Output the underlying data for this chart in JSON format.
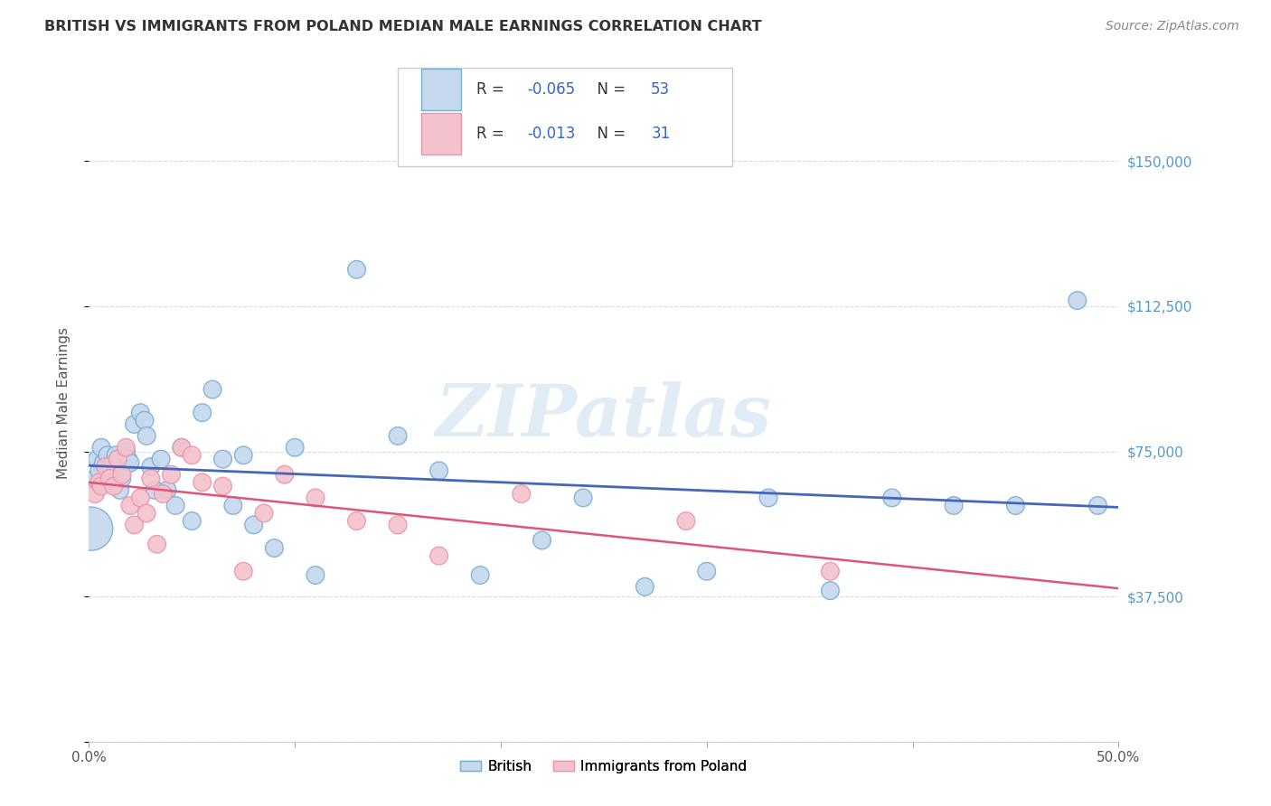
{
  "title": "BRITISH VS IMMIGRANTS FROM POLAND MEDIAN MALE EARNINGS CORRELATION CHART",
  "source": "Source: ZipAtlas.com",
  "ylabel": "Median Male Earnings",
  "xlim": [
    0.0,
    0.5
  ],
  "ylim": [
    0,
    175000
  ],
  "yticks": [
    0,
    37500,
    75000,
    112500,
    150000
  ],
  "ytick_labels": [
    "",
    "$37,500",
    "$75,000",
    "$112,500",
    "$150,000"
  ],
  "xticks": [
    0.0,
    0.1,
    0.2,
    0.3,
    0.4,
    0.5
  ],
  "xtick_labels": [
    "0.0%",
    "",
    "",
    "",
    "",
    "50.0%"
  ],
  "watermark": "ZIPatlas",
  "legend_british_R": "-0.065",
  "legend_british_N": "53",
  "legend_poland_R": "-0.013",
  "legend_poland_N": "31",
  "background_color": "#ffffff",
  "title_color": "#333333",
  "blue_face": "#c5d8ee",
  "blue_edge": "#7aafd4",
  "blue_line": "#4466bb",
  "pink_face": "#f4c2cc",
  "pink_edge": "#e898aa",
  "pink_line": "#dd5577",
  "grid_color": "#cccccc",
  "right_label_color": "#5599cc",
  "legend_R_color": "#3366cc",
  "legend_N_color": "#3366cc",
  "legend_text_color": "#333333",
  "british_x": [
    0.003,
    0.004,
    0.005,
    0.006,
    0.007,
    0.009,
    0.01,
    0.011,
    0.012,
    0.013,
    0.014,
    0.015,
    0.016,
    0.017,
    0.018,
    0.019,
    0.02,
    0.022,
    0.025,
    0.027,
    0.028,
    0.03,
    0.032,
    0.035,
    0.038,
    0.042,
    0.045,
    0.05,
    0.055,
    0.06,
    0.065,
    0.07,
    0.075,
    0.08,
    0.09,
    0.1,
    0.11,
    0.13,
    0.15,
    0.17,
    0.19,
    0.22,
    0.24,
    0.27,
    0.3,
    0.33,
    0.36,
    0.39,
    0.42,
    0.45,
    0.48,
    0.49,
    0.001
  ],
  "british_y": [
    68000,
    73000,
    70000,
    76000,
    72000,
    74000,
    71000,
    70000,
    72000,
    74000,
    73000,
    65000,
    68000,
    71000,
    75000,
    73000,
    72000,
    82000,
    85000,
    83000,
    79000,
    71000,
    65000,
    73000,
    65000,
    61000,
    76000,
    57000,
    85000,
    91000,
    73000,
    61000,
    74000,
    56000,
    50000,
    76000,
    43000,
    122000,
    79000,
    70000,
    43000,
    52000,
    63000,
    40000,
    44000,
    63000,
    39000,
    63000,
    61000,
    61000,
    114000,
    61000,
    55000
  ],
  "british_sizes_pt": [
    200,
    200,
    200,
    200,
    200,
    200,
    200,
    200,
    200,
    200,
    200,
    200,
    200,
    200,
    200,
    200,
    200,
    200,
    200,
    200,
    200,
    200,
    200,
    200,
    200,
    200,
    200,
    200,
    200,
    200,
    200,
    200,
    200,
    200,
    200,
    200,
    200,
    200,
    200,
    200,
    200,
    200,
    200,
    200,
    200,
    200,
    200,
    200,
    200,
    200,
    200,
    200,
    1200
  ],
  "poland_x": [
    0.003,
    0.005,
    0.006,
    0.008,
    0.01,
    0.012,
    0.014,
    0.016,
    0.018,
    0.02,
    0.022,
    0.025,
    0.028,
    0.03,
    0.033,
    0.036,
    0.04,
    0.045,
    0.05,
    0.055,
    0.065,
    0.075,
    0.085,
    0.095,
    0.11,
    0.13,
    0.15,
    0.17,
    0.21,
    0.29,
    0.36
  ],
  "poland_y": [
    64000,
    67000,
    66000,
    71000,
    68000,
    66000,
    73000,
    69000,
    76000,
    61000,
    56000,
    63000,
    59000,
    68000,
    51000,
    64000,
    69000,
    76000,
    74000,
    67000,
    66000,
    44000,
    59000,
    69000,
    63000,
    57000,
    56000,
    48000,
    64000,
    57000,
    44000
  ],
  "poland_sizes_pt": [
    200,
    200,
    200,
    200,
    200,
    200,
    200,
    200,
    200,
    200,
    200,
    200,
    200,
    200,
    200,
    200,
    200,
    200,
    200,
    200,
    200,
    200,
    200,
    200,
    200,
    200,
    200,
    200,
    200,
    200,
    200
  ]
}
